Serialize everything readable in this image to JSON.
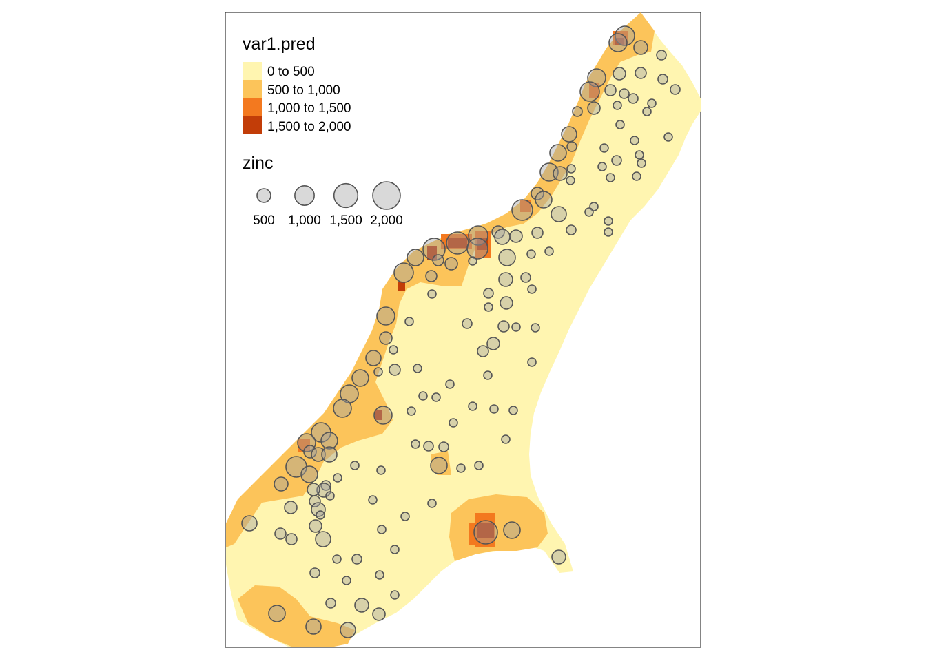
{
  "legend_fill": {
    "title": "var1.pred",
    "classes": [
      {
        "label": "0 to 500",
        "color": "#FFF5B0"
      },
      {
        "label": "500 to 1,000",
        "color": "#FCC45A"
      },
      {
        "label": "1,000 to 1,500",
        "color": "#F3791F"
      },
      {
        "label": "1,500 to 2,000",
        "color": "#C23D08"
      }
    ]
  },
  "legend_size": {
    "title": "zinc",
    "sizes": [
      {
        "label": "500",
        "value": 500
      },
      {
        "label": "1,000",
        "value": 1000
      },
      {
        "label": "1,500",
        "value": 1500
      },
      {
        "label": "2,000",
        "value": 2000
      }
    ]
  },
  "symbol_style": {
    "fill": "#A0A0A0",
    "stroke": "#555555"
  }
}
